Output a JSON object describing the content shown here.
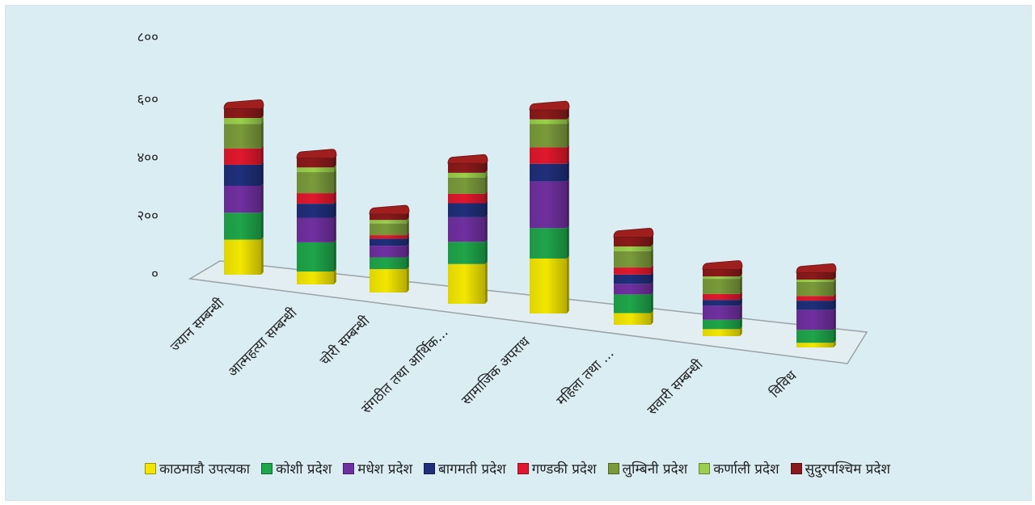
{
  "chart_data": {
    "type": "bar",
    "stacked": true,
    "three_d": true,
    "categories": [
      "ज्यान सम्बन्धी",
      "आत्महत्या सम्बन्धी",
      "चोरी सम्बन्धी",
      "संगठीत तथा आर्थिक...",
      "सामाजिक अपराध",
      "महिला तथा ...",
      "सवारी सम्बन्धी",
      "विविध"
    ],
    "y_ticks": [
      "०",
      "२००",
      "४००",
      "६००",
      "८००"
    ],
    "ylim": [
      0,
      800
    ],
    "series": [
      {
        "name": "काठमाडौ उपत्यका",
        "color": "#f2e600",
        "values": [
          150,
          55,
          100,
          170,
          235,
          50,
          30,
          20
        ]
      },
      {
        "name": "कोशी प्रदेश",
        "color": "#1fa54a",
        "values": [
          115,
          125,
          50,
          95,
          130,
          80,
          40,
          55
        ]
      },
      {
        "name": "मधेश प्रदेश",
        "color": "#7030a0",
        "values": [
          115,
          105,
          50,
          105,
          200,
          45,
          60,
          85
        ]
      },
      {
        "name": "बागमती प्रदेश",
        "color": "#1f2f7a",
        "values": [
          90,
          60,
          30,
          60,
          75,
          40,
          25,
          40
        ]
      },
      {
        "name": "गण्डकी प्रदेश",
        "color": "#e0182d",
        "values": [
          70,
          45,
          15,
          40,
          70,
          30,
          25,
          20
        ]
      },
      {
        "name": "लुम्बिनी प्रदेश",
        "color": "#7a9a3a",
        "values": [
          105,
          90,
          50,
          70,
          100,
          70,
          65,
          60
        ]
      },
      {
        "name": "कर्णाली प्रदेश",
        "color": "#9ad04a",
        "values": [
          25,
          20,
          15,
          20,
          20,
          20,
          10,
          10
        ]
      },
      {
        "name": "सुदुरपश्चिम प्रदेश",
        "color": "#8a1a1a",
        "values": [
          40,
          40,
          25,
          40,
          40,
          40,
          30,
          30
        ]
      }
    ],
    "legend_position": "bottom",
    "grid": false
  }
}
